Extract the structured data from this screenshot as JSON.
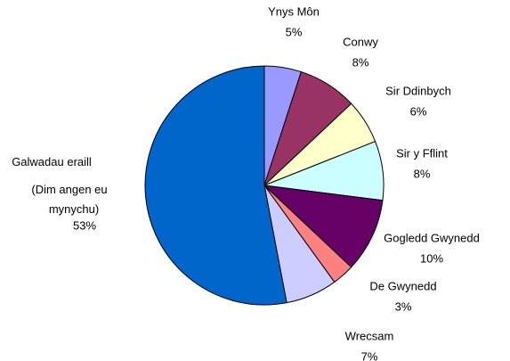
{
  "chart_data": {
    "type": "pie",
    "categories": [
      "Ynys Môn",
      "Conwy",
      "Sir Ddinbych",
      "Sir y Fflint",
      "Gogledd Gwynedd",
      "De Gwynedd",
      "Wrecsam",
      "Galwadau eraill\n(Dim angen eu\nmynychu)"
    ],
    "values": [
      5,
      8,
      6,
      8,
      10,
      3,
      7,
      53
    ],
    "value_labels": [
      "5%",
      "8%",
      "6%",
      "8%",
      "10%",
      "3%",
      "7%",
      "53%"
    ],
    "colors": [
      "#9999ff",
      "#993366",
      "#ffffcc",
      "#ccffff",
      "#660066",
      "#ff8080",
      "#ccccff",
      "#0066cc"
    ]
  }
}
